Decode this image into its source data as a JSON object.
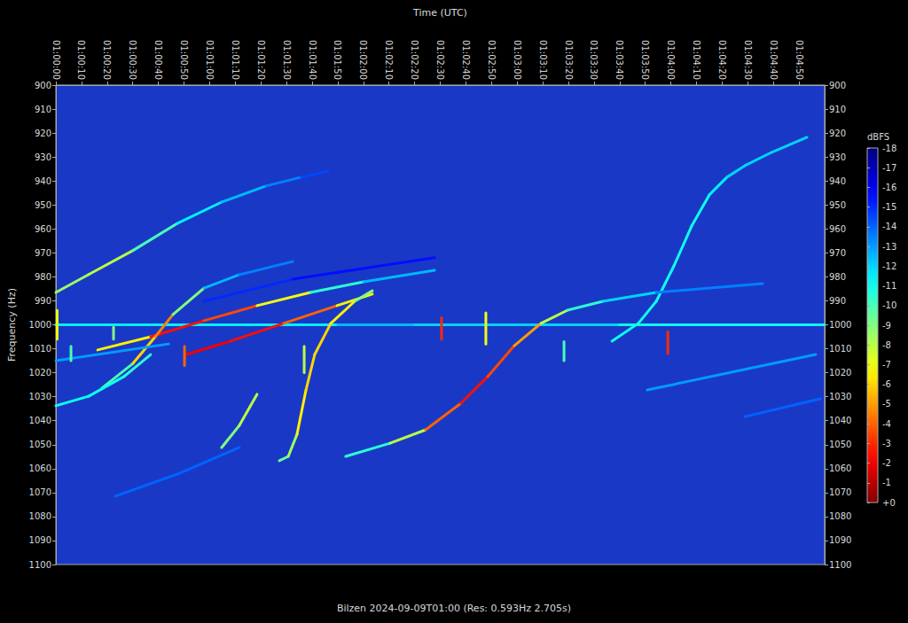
{
  "chart_data": {
    "type": "spectrogram",
    "title": "Bilzen 2024-09-09T01:00 (Res: 0.593Hz 2.705s)",
    "x_label": "Time (UTC)",
    "y_label": "Frequency (Hz)",
    "xlim": [
      0,
      300
    ],
    "xticks": [
      {
        "value": 0,
        "label": "01:00:00"
      },
      {
        "value": 10,
        "label": "01:00:10"
      },
      {
        "value": 20,
        "label": "01:00:20"
      },
      {
        "value": 30,
        "label": "01:00:30"
      },
      {
        "value": 40,
        "label": "01:00:40"
      },
      {
        "value": 50,
        "label": "01:00:50"
      },
      {
        "value": 60,
        "label": "01:01:00"
      },
      {
        "value": 70,
        "label": "01:01:10"
      },
      {
        "value": 80,
        "label": "01:01:20"
      },
      {
        "value": 90,
        "label": "01:01:30"
      },
      {
        "value": 100,
        "label": "01:01:40"
      },
      {
        "value": 110,
        "label": "01:01:50"
      },
      {
        "value": 120,
        "label": "01:02:00"
      },
      {
        "value": 130,
        "label": "01:02:10"
      },
      {
        "value": 140,
        "label": "01:02:20"
      },
      {
        "value": 150,
        "label": "01:02:30"
      },
      {
        "value": 160,
        "label": "01:02:40"
      },
      {
        "value": 170,
        "label": "01:02:50"
      },
      {
        "value": 180,
        "label": "01:03:00"
      },
      {
        "value": 190,
        "label": "01:03:10"
      },
      {
        "value": 200,
        "label": "01:03:20"
      },
      {
        "value": 210,
        "label": "01:03:30"
      },
      {
        "value": 220,
        "label": "01:03:40"
      },
      {
        "value": 230,
        "label": "01:03:50"
      },
      {
        "value": 240,
        "label": "01:04:00"
      },
      {
        "value": 250,
        "label": "01:04:10"
      },
      {
        "value": 260,
        "label": "01:04:20"
      },
      {
        "value": 270,
        "label": "01:04:30"
      },
      {
        "value": 280,
        "label": "01:04:40"
      },
      {
        "value": 290,
        "label": "01:04:50"
      }
    ],
    "ylim": [
      900,
      1100
    ],
    "yticks": [
      900,
      910,
      920,
      930,
      940,
      950,
      960,
      970,
      980,
      990,
      1000,
      1010,
      1020,
      1030,
      1040,
      1050,
      1060,
      1070,
      1080,
      1090,
      1100
    ],
    "colorbar": {
      "label": "dBFS",
      "range": [
        -18,
        0
      ],
      "ticks": [
        -18,
        -17,
        -16,
        -15,
        -14,
        -13,
        -12,
        -11,
        -10,
        -9,
        -8,
        -7,
        -6,
        -5,
        -4,
        -3,
        -2,
        -1,
        {
          "value": 0,
          "label": "+0"
        }
      ]
    },
    "series": [
      {
        "values": [
          [
            0,
            1000,
            -11
          ],
          [
            110,
            1000,
            -12
          ],
          [
            140,
            1000,
            -13
          ],
          [
            220,
            1000,
            -11
          ],
          [
            300,
            1000,
            -11
          ]
        ]
      },
      {
        "values": [
          [
            0,
            986.5,
            -10
          ],
          [
            12.8,
            979,
            -7
          ],
          [
            30.1,
            969,
            -9
          ],
          [
            47.4,
            957.7,
            -11
          ],
          [
            64.7,
            948.8,
            -12
          ],
          [
            82,
            942.1,
            -13
          ],
          [
            95.8,
            938.4,
            -14
          ],
          [
            106.2,
            935.9,
            -15
          ]
        ]
      },
      {
        "values": [
          [
            217,
            1006.8,
            -11
          ],
          [
            227.3,
            999.4,
            -11
          ],
          [
            234.3,
            990.2,
            -11
          ],
          [
            241.2,
            975.4,
            -11
          ],
          [
            248.1,
            958.8,
            -11
          ],
          [
            255,
            945.8,
            -11
          ],
          [
            261.9,
            938.4,
            -12
          ],
          [
            268.9,
            933.6,
            -12
          ],
          [
            279.2,
            928.1,
            -12
          ],
          [
            293.1,
            921.8,
            -12
          ]
        ]
      },
      {
        "values": [
          [
            113.1,
            1054.9,
            -11
          ],
          [
            130.4,
            1049.4,
            -10
          ],
          [
            144.3,
            1043.8,
            -6
          ],
          [
            158.1,
            1032.7,
            -2
          ],
          [
            168.5,
            1021.6,
            -3
          ],
          [
            178.9,
            1008.7,
            -4
          ],
          [
            189.3,
            999.4,
            -6
          ],
          [
            199.7,
            993.9,
            -10
          ],
          [
            213.5,
            990.2,
            -11
          ],
          [
            234.3,
            986.5,
            -13
          ],
          [
            275.8,
            982.8,
            -14
          ]
        ]
      },
      {
        "values": [
          [
            50.9,
            1012.4,
            -2
          ],
          [
            68.2,
            1006.8,
            -2
          ],
          [
            88.9,
            999.4,
            -3
          ],
          [
            109.7,
            992,
            -5
          ],
          [
            123.5,
            987.2,
            -8
          ]
        ]
      },
      {
        "values": [
          [
            16.3,
            1010.5,
            -10
          ],
          [
            37,
            1005,
            -3
          ],
          [
            57.8,
            998.3,
            -2
          ],
          [
            78.5,
            992,
            -5
          ],
          [
            99.3,
            986.5,
            -9
          ],
          [
            120.1,
            982.1,
            -12
          ],
          [
            147.8,
            977.3,
            -13
          ]
        ]
      },
      {
        "values": [
          [
            18,
            1026.4,
            -11
          ],
          [
            30.1,
            1016.1,
            -9
          ],
          [
            38.8,
            1005,
            -3
          ],
          [
            45.7,
            995.7,
            -6
          ],
          [
            57.8,
            984.7,
            -12
          ],
          [
            71.6,
            979.1,
            -13
          ],
          [
            92.4,
            973.6,
            -14
          ]
        ]
      },
      {
        "values": [
          [
            0,
            1033.8,
            -11
          ],
          [
            12.8,
            1029.8,
            -11
          ],
          [
            26.6,
            1021.6,
            -11
          ],
          [
            37,
            1012.4,
            -10
          ]
        ]
      },
      {
        "values": [
          [
            64.7,
            1051.2,
            -10
          ],
          [
            71.6,
            1042,
            -8
          ],
          [
            78.5,
            1029,
            -8
          ]
        ]
      },
      {
        "values": [
          [
            87.2,
            1056.7,
            -10
          ],
          [
            90.7,
            1054.9,
            -9
          ],
          [
            94.1,
            1045.7,
            -8
          ],
          [
            97.6,
            1027.2,
            -5
          ],
          [
            101,
            1012.4,
            -7
          ],
          [
            107.3,
            999.4,
            -5
          ],
          [
            116.6,
            990.2,
            -8
          ],
          [
            123.5,
            985.8,
            -10
          ]
        ]
      },
      {
        "values": [
          [
            57.8,
            990.2,
            -15
          ],
          [
            92.4,
            981,
            -15
          ],
          [
            147.8,
            972,
            -16
          ]
        ]
      },
      {
        "values": [
          [
            230.8,
            1027.2,
            -13
          ],
          [
            296.5,
            1012.4,
            -13
          ]
        ]
      },
      {
        "values": [
          [
            268.9,
            1038.3,
            -14
          ],
          [
            298.3,
            1030.9,
            -14
          ]
        ]
      },
      {
        "values": [
          [
            0,
            1015,
            -13
          ],
          [
            44,
            1008,
            -13
          ]
        ]
      },
      {
        "values": [
          [
            23.2,
            1071.5,
            -14
          ],
          [
            47.4,
            1062.3,
            -14
          ],
          [
            71.6,
            1051.2,
            -14
          ]
        ]
      },
      {
        "values": [
          [
            0.5,
            994,
            -7
          ],
          [
            0.5,
            1006,
            -7
          ]
        ]
      },
      {
        "values": [
          [
            5.9,
            1009,
            -10
          ],
          [
            5.9,
            1015,
            -10
          ]
        ]
      },
      {
        "values": [
          [
            22.5,
            1001,
            -9
          ],
          [
            22.5,
            1006,
            -9
          ]
        ]
      },
      {
        "values": [
          [
            50.2,
            1009,
            -4
          ],
          [
            50.2,
            1017,
            -4
          ]
        ]
      },
      {
        "values": [
          [
            96.9,
            1009,
            -8
          ],
          [
            96.9,
            1020,
            -8
          ]
        ]
      },
      {
        "values": [
          [
            150.5,
            997,
            -3
          ],
          [
            150.5,
            1006,
            -3
          ]
        ]
      },
      {
        "values": [
          [
            167.8,
            995,
            -7
          ],
          [
            167.8,
            1008,
            -7
          ]
        ]
      },
      {
        "values": [
          [
            198.3,
            1007,
            -10
          ],
          [
            198.3,
            1015,
            -10
          ]
        ]
      },
      {
        "values": [
          [
            238.8,
            1003,
            -3
          ],
          [
            238.8,
            1012,
            -3
          ]
        ]
      }
    ]
  }
}
